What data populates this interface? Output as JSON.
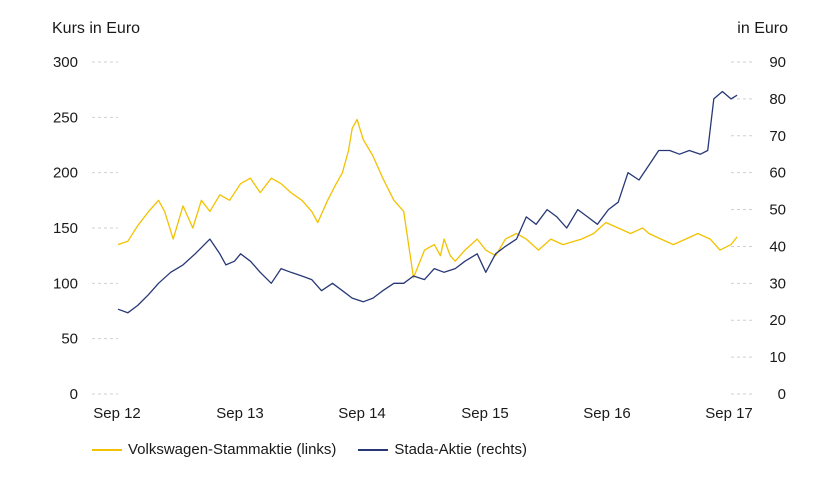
{
  "chart_data": {
    "type": "line",
    "x_categories": [
      "Sep 12",
      "Sep 13",
      "Sep 14",
      "Sep 15",
      "Sep 16",
      "Sep 17"
    ],
    "y_left": {
      "label": "Kurs in Euro",
      "ticks": [
        0,
        50,
        100,
        150,
        200,
        250,
        300
      ],
      "lim": [
        0,
        300
      ]
    },
    "y_right": {
      "label": "in Euro",
      "ticks": [
        0,
        10,
        20,
        30,
        40,
        50,
        60,
        70,
        80,
        90
      ],
      "lim": [
        0,
        90
      ]
    },
    "grid": "horizontal dashed",
    "legend_position": "bottom",
    "series": [
      {
        "name": "Volkswagen-Stammaktie (links)",
        "axis": "left",
        "color": "#f2c200",
        "x": [
          2012.67,
          2012.75,
          2012.83,
          2012.92,
          2013.0,
          2013.05,
          2013.12,
          2013.2,
          2013.28,
          2013.35,
          2013.42,
          2013.5,
          2013.58,
          2013.67,
          2013.75,
          2013.83,
          2013.92,
          2014.0,
          2014.08,
          2014.17,
          2014.25,
          2014.3,
          2014.38,
          2014.45,
          2014.5,
          2014.55,
          2014.58,
          2014.62,
          2014.67,
          2014.75,
          2014.83,
          2014.92,
          2015.0,
          2015.08,
          2015.17,
          2015.25,
          2015.3,
          2015.33,
          2015.38,
          2015.42,
          2015.5,
          2015.6,
          2015.67,
          2015.75,
          2015.83,
          2015.92,
          2016.0,
          2016.1,
          2016.2,
          2016.3,
          2016.45,
          2016.55,
          2016.65,
          2016.75,
          2016.85,
          2016.95,
          2017.0,
          2017.1,
          2017.2,
          2017.3,
          2017.4,
          2017.5,
          2017.58,
          2017.67,
          2017.72
        ],
        "y": [
          135,
          138,
          152,
          165,
          175,
          165,
          140,
          170,
          150,
          175,
          165,
          180,
          175,
          190,
          195,
          182,
          195,
          190,
          182,
          175,
          165,
          155,
          175,
          190,
          200,
          220,
          240,
          248,
          230,
          215,
          195,
          175,
          165,
          105,
          130,
          135,
          125,
          140,
          125,
          120,
          130,
          140,
          130,
          125,
          140,
          145,
          140,
          130,
          140,
          135,
          140,
          145,
          155,
          150,
          145,
          150,
          145,
          140,
          135,
          140,
          145,
          140,
          130,
          135,
          142
        ]
      },
      {
        "name": "Stada-Aktie (rechts)",
        "axis": "right",
        "color": "#283877",
        "x": [
          2012.67,
          2012.75,
          2012.83,
          2012.92,
          2013.0,
          2013.1,
          2013.2,
          2013.3,
          2013.42,
          2013.5,
          2013.55,
          2013.62,
          2013.67,
          2013.75,
          2013.83,
          2013.92,
          2014.0,
          2014.08,
          2014.17,
          2014.25,
          2014.33,
          2014.42,
          2014.5,
          2014.58,
          2014.67,
          2014.75,
          2014.83,
          2014.92,
          2015.0,
          2015.08,
          2015.17,
          2015.25,
          2015.33,
          2015.42,
          2015.5,
          2015.6,
          2015.67,
          2015.75,
          2015.83,
          2015.92,
          2016.0,
          2016.08,
          2016.17,
          2016.25,
          2016.33,
          2016.42,
          2016.5,
          2016.58,
          2016.67,
          2016.75,
          2016.83,
          2016.92,
          2017.0,
          2017.08,
          2017.17,
          2017.25,
          2017.33,
          2017.42,
          2017.48,
          2017.53,
          2017.6,
          2017.67,
          2017.72
        ],
        "y": [
          23,
          22,
          24,
          27,
          30,
          33,
          35,
          38,
          42,
          38,
          35,
          36,
          38,
          36,
          33,
          30,
          34,
          33,
          32,
          31,
          28,
          30,
          28,
          26,
          25,
          26,
          28,
          30,
          30,
          32,
          31,
          34,
          33,
          34,
          36,
          38,
          33,
          38,
          40,
          42,
          48,
          46,
          50,
          48,
          45,
          50,
          48,
          46,
          50,
          52,
          60,
          58,
          62,
          66,
          66,
          65,
          66,
          65,
          66,
          80,
          82,
          80,
          81
        ]
      }
    ]
  }
}
